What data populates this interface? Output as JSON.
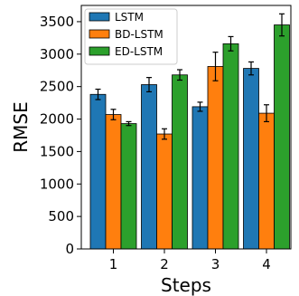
{
  "chart_data": {
    "type": "bar",
    "categories": [
      "1",
      "2",
      "3",
      "4"
    ],
    "series": [
      {
        "name": "LSTM",
        "color": "#1f77b4",
        "values": [
          2380,
          2530,
          2190,
          2780
        ],
        "errors": [
          80,
          110,
          70,
          100
        ]
      },
      {
        "name": "BD-LSTM",
        "color": "#ff7f0e",
        "values": [
          2070,
          1770,
          2810,
          2090
        ],
        "errors": [
          80,
          80,
          220,
          130
        ]
      },
      {
        "name": "ED-LSTM",
        "color": "#2ca02c",
        "values": [
          1930,
          2680,
          3160,
          3450
        ],
        "errors": [
          30,
          80,
          110,
          170
        ]
      }
    ],
    "title": "",
    "xlabel": "Steps",
    "ylabel": "RMSE",
    "ylim": [
      0,
      3750
    ],
    "yticks": [
      0,
      500,
      1000,
      1500,
      2000,
      2500,
      3000,
      3500
    ],
    "grid": false,
    "legend_position": "top-left"
  }
}
